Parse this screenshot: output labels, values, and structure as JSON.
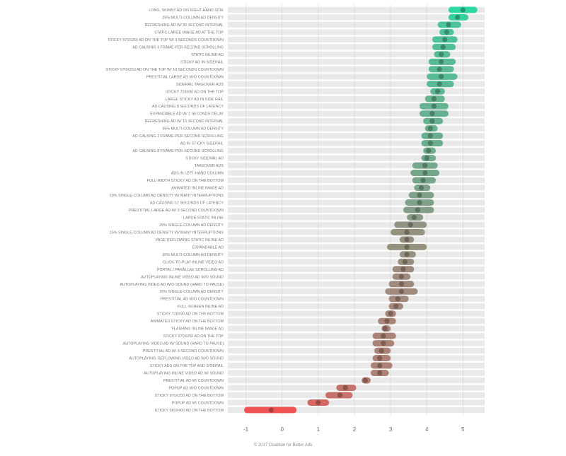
{
  "chart_data": {
    "type": "scatter",
    "title": "",
    "xlabel": "",
    "ylabel": "",
    "xlim": [
      -1.5,
      5.6
    ],
    "x_ticks": [
      -1,
      0,
      1,
      2,
      3,
      4,
      5
    ],
    "x_tick_labels": [
      "-1",
      "0",
      "1",
      "2",
      "3",
      "4",
      "5"
    ],
    "grid": "vertical",
    "encoding": "dot = mean score; horizontal bar = range",
    "color_scale": {
      "high": "#2fd7a3",
      "mid": "#a08a7c",
      "low": "#f05454"
    },
    "rows": [
      {
        "label": "LONG, SKINNY AD ON RIGHT-HAND SIDE",
        "value": 5.0,
        "low": 4.6,
        "high": 5.4
      },
      {
        "label": "25% MULTI-COLUMN AD DENSITY",
        "value": 4.85,
        "low": 4.6,
        "high": 5.15
      },
      {
        "label": "REFRESHING AD W/ 30 SECOND INTERVAL",
        "value": 4.6,
        "low": 4.3,
        "high": 4.95
      },
      {
        "label": "STATIC LARGE IMAGE AD AT THE TOP",
        "value": 4.55,
        "low": 4.35,
        "high": 4.75
      },
      {
        "label": "STICKY 970X250 AD ON THE TOP W/ 3 SECONDS COUNTDOWN",
        "value": 4.5,
        "low": 4.15,
        "high": 4.85
      },
      {
        "label": "AD CAUSING 4 FRAME-PER-SECOND SCROLLING",
        "value": 4.45,
        "low": 4.15,
        "high": 4.8
      },
      {
        "label": "STATIC INLINE AD",
        "value": 4.4,
        "low": 4.2,
        "high": 4.65
      },
      {
        "label": "STICKY AD IN SIDERAIL",
        "value": 4.4,
        "low": 4.05,
        "high": 4.8
      },
      {
        "label": "STICKY 970X250 AD ON THE TOP W/ 10 SECONDS COUNTDOWN",
        "value": 4.35,
        "low": 4.05,
        "high": 4.75
      },
      {
        "label": "PRESTITIAL LARGE AD W/O COUNTDOWN",
        "value": 4.4,
        "low": 4.0,
        "high": 4.85
      },
      {
        "label": "SIDERAIL TAKEOVER ADS",
        "value": 4.35,
        "low": 4.0,
        "high": 4.75
      },
      {
        "label": "STICKY 728X90 AD ON THE TOP",
        "value": 4.3,
        "low": 4.1,
        "high": 4.5
      },
      {
        "label": "LARGE STICKY AD IN SIDE RAIL",
        "value": 4.2,
        "low": 3.95,
        "high": 4.5
      },
      {
        "label": "AD CAUSING 8 SECONDS OF LATENCY",
        "value": 4.2,
        "low": 3.8,
        "high": 4.6
      },
      {
        "label": "EXPANDABLE AD W/ 2 SECONDS DELAY",
        "value": 4.15,
        "low": 3.8,
        "high": 4.6
      },
      {
        "label": "REFRESHING AD W/ 15 SECOND INTERVAL",
        "value": 4.15,
        "low": 3.9,
        "high": 4.45
      },
      {
        "label": "35% MULTI-COLUMN AD DENSITY",
        "value": 4.1,
        "low": 3.95,
        "high": 4.3
      },
      {
        "label": "AD CAUSING 2 FRAME-PER-SECOND SCROLLING",
        "value": 4.1,
        "low": 3.85,
        "high": 4.45
      },
      {
        "label": "AD IN STICKY SIDERAIL",
        "value": 4.1,
        "low": 3.85,
        "high": 4.45
      },
      {
        "label": "AD CAUSING 8 FRAME-PER-SECOND SCROLLING",
        "value": 4.05,
        "low": 3.9,
        "high": 4.25
      },
      {
        "label": "STICKY SIDERAIL AD",
        "value": 4.0,
        "low": 3.85,
        "high": 4.25
      },
      {
        "label": "TAKEOVER ADS",
        "value": 3.95,
        "low": 3.6,
        "high": 4.3
      },
      {
        "label": "ADS IN LEFT-HAND COLUMN",
        "value": 3.95,
        "low": 3.55,
        "high": 4.35
      },
      {
        "label": "FULL-WIDTH STICKY AD ON THE BOTTOM",
        "value": 3.9,
        "low": 3.6,
        "high": 4.25
      },
      {
        "label": "ANIMATED INLINE IMAGE AD",
        "value": 3.85,
        "low": 3.65,
        "high": 4.1
      },
      {
        "label": "50% SINGLE-COLUMN AD DENSITY W/ MANY INTERRUPTIONS",
        "value": 3.8,
        "low": 3.5,
        "high": 4.2
      },
      {
        "label": "AD CAUSING 12 SECONDS OF LATENCY",
        "value": 3.8,
        "low": 3.4,
        "high": 4.2
      },
      {
        "label": "PRESTITIAL LARGE AD W/ 3 SECOND COUNTDOWN",
        "value": 3.75,
        "low": 3.35,
        "high": 4.2
      },
      {
        "label": "LARGE STATIC INLINE",
        "value": 3.65,
        "low": 3.45,
        "high": 3.9
      },
      {
        "label": "25% SINGLE-COLUMN AD DENSITY",
        "value": 3.55,
        "low": 3.1,
        "high": 4.0
      },
      {
        "label": "15% SINGLE-COLUMN AD DENSITY W/ MANY INTERRUPTIONS",
        "value": 3.45,
        "low": 3.0,
        "high": 3.95
      },
      {
        "label": "PAGE-REFLOWING STATIC INLINE AD",
        "value": 3.45,
        "low": 3.25,
        "high": 3.65
      },
      {
        "label": "EXPANDABLE AD",
        "value": 3.45,
        "low": 2.9,
        "high": 4.0
      },
      {
        "label": "30% MULTI-COLUMN AD DENSITY",
        "value": 3.45,
        "low": 3.25,
        "high": 3.7
      },
      {
        "label": "CLICK-TO-PLAY INLINE VIDEO AD",
        "value": 3.4,
        "low": 3.2,
        "high": 3.65
      },
      {
        "label": "PORTAL / PARALLAX SCROLLING AD",
        "value": 3.35,
        "low": 3.05,
        "high": 3.65
      },
      {
        "label": "AUTOPLAYING INLINE VIDEO AD W/O SOUND",
        "value": 3.3,
        "low": 3.05,
        "high": 3.55
      },
      {
        "label": "AUTOPLAYING VIDEO AD W/O SOUND (HARD TO PAUSE)",
        "value": 3.3,
        "low": 2.95,
        "high": 3.65
      },
      {
        "label": "35% SINGLE-COLUMN AD DENSITY",
        "value": 3.3,
        "low": 2.85,
        "high": 3.75
      },
      {
        "label": "PRESTITIAL AD W/O COUNTDOWN",
        "value": 3.2,
        "low": 2.95,
        "high": 3.5
      },
      {
        "label": "FULL-SCREEN INLINE AD",
        "value": 3.15,
        "low": 2.95,
        "high": 3.35
      },
      {
        "label": "STICKY 728X90 AD ON THE BOTTOM",
        "value": 3.0,
        "low": 2.85,
        "high": 3.15
      },
      {
        "label": "ANIMATED STICKY AD ON THE BOTTOM",
        "value": 2.9,
        "low": 2.65,
        "high": 3.15
      },
      {
        "label": "FLASHING INLINE IMAGE AD",
        "value": 2.85,
        "low": 2.75,
        "high": 3.0
      },
      {
        "label": "STICKY 970X250 AD ON THE TOP",
        "value": 2.8,
        "low": 2.5,
        "high": 3.15
      },
      {
        "label": "AUTOPLAYING VIDEO AD W/ SOUND (HARD TO PAUSE)",
        "value": 2.8,
        "low": 2.5,
        "high": 3.1
      },
      {
        "label": "PRESTITIAL AD W/ 3 SECOND COUNTDOWN",
        "value": 2.75,
        "low": 2.55,
        "high": 3.0
      },
      {
        "label": "AUTOPLAYING, REFLOWING VIDEO AD W/O SOUND",
        "value": 2.7,
        "low": 2.5,
        "high": 3.0
      },
      {
        "label": "STICKY ADS ON THE TOP AND SIDERAIL",
        "value": 2.7,
        "low": 2.45,
        "high": 3.05
      },
      {
        "label": "AUTOPLAYING INLINE VIDEO AD W/ SOUND",
        "value": 2.7,
        "low": 2.45,
        "high": 2.95
      },
      {
        "label": "PRESTITIAL AD W/ COUNTDOWN",
        "value": 2.3,
        "low": 2.2,
        "high": 2.45
      },
      {
        "label": "POPUP AD W/O COUNTDOWN",
        "value": 1.75,
        "low": 1.5,
        "high": 2.05
      },
      {
        "label": "STICKY 970X250 AD ON THE BOTTOM",
        "value": 1.6,
        "low": 1.2,
        "high": 1.95
      },
      {
        "label": "POPUP AD W/ COUNTDOWN",
        "value": 1.0,
        "low": 0.7,
        "high": 1.3
      },
      {
        "label": "STICKY 580X400 AD ON THE BOTTOM",
        "value": -0.3,
        "low": -1.05,
        "high": 0.4
      }
    ]
  },
  "footer": {
    "credit": "© 2017 Coalition for Better Ads"
  }
}
